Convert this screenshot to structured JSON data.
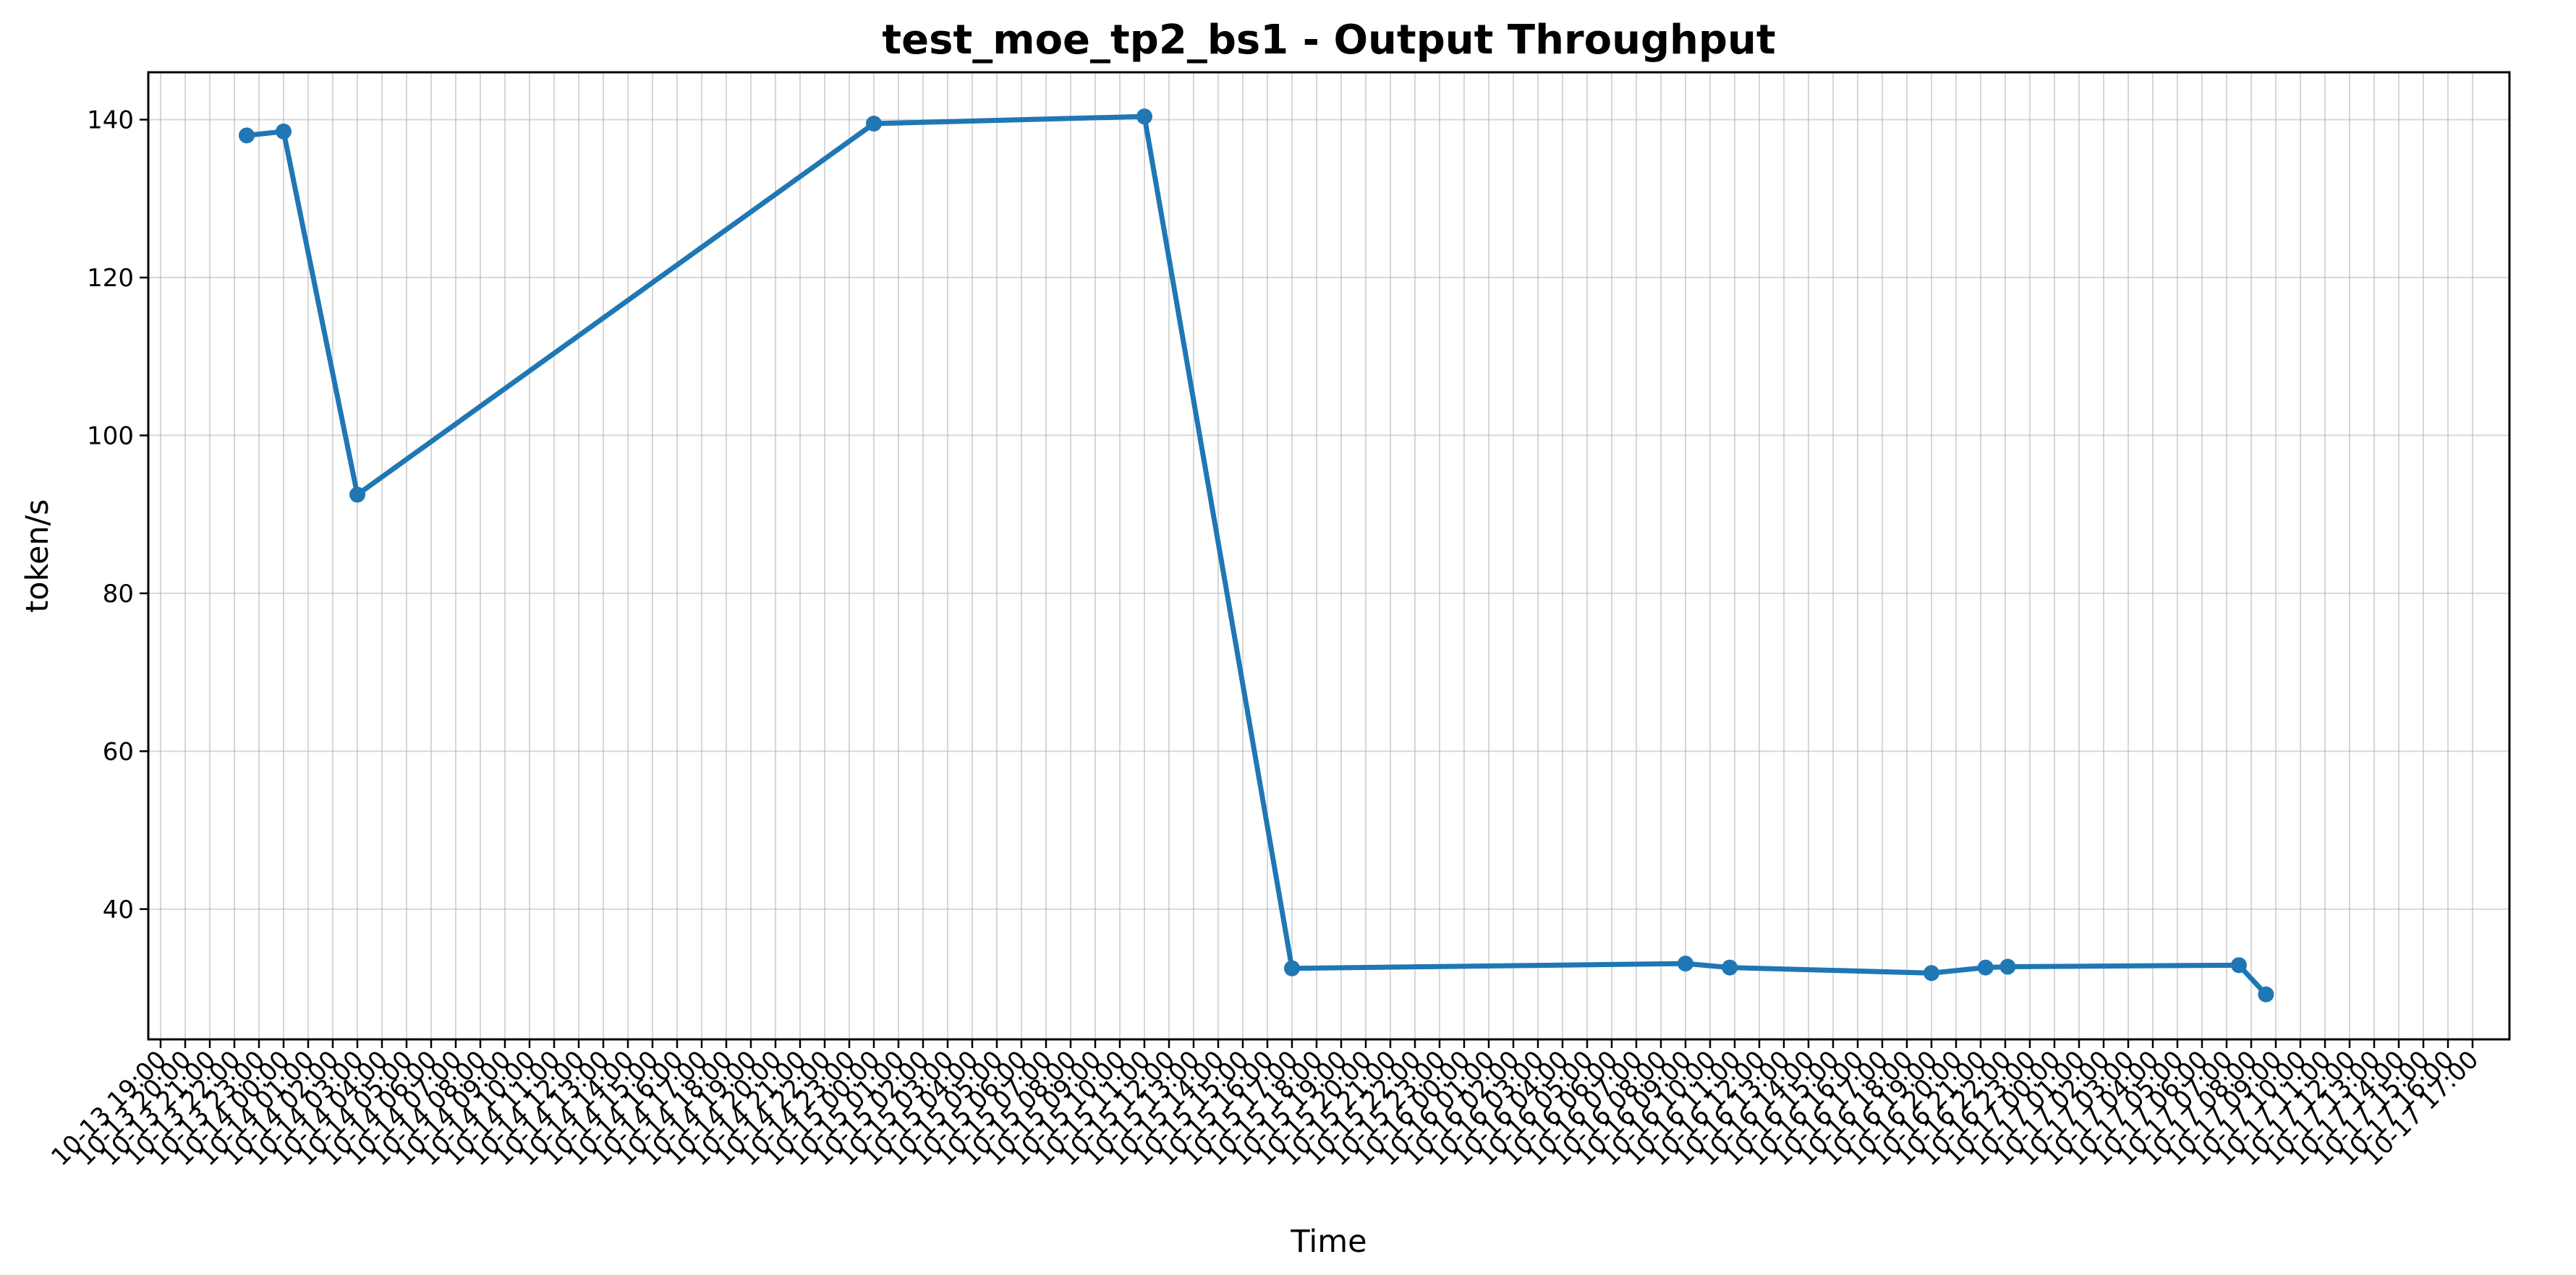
{
  "chart_data": {
    "type": "line",
    "title": "test_moe_tp2_bs1 - Output Throughput",
    "xlabel": "Time",
    "ylabel": "token/s",
    "ylim": [
      23.5,
      146
    ],
    "yticks": [
      40,
      60,
      80,
      100,
      120,
      140
    ],
    "grid": true,
    "line_color": "#1f77b4",
    "x_unit": "hours since 10-13 19:00",
    "xlim": [
      -0.5,
      95.5
    ],
    "x_tick_labels": [
      "10-13 19:00",
      "10-13 20:00",
      "10-13 21:00",
      "10-13 22:00",
      "10-13 23:00",
      "10-14 00:00",
      "10-14 01:00",
      "10-14 02:00",
      "10-14 03:00",
      "10-14 04:00",
      "10-14 05:00",
      "10-14 06:00",
      "10-14 07:00",
      "10-14 08:00",
      "10-14 09:00",
      "10-14 10:00",
      "10-14 11:00",
      "10-14 12:00",
      "10-14 13:00",
      "10-14 14:00",
      "10-14 15:00",
      "10-14 16:00",
      "10-14 17:00",
      "10-14 18:00",
      "10-14 19:00",
      "10-14 20:00",
      "10-14 21:00",
      "10-14 22:00",
      "10-14 23:00",
      "10-15 00:00",
      "10-15 01:00",
      "10-15 02:00",
      "10-15 03:00",
      "10-15 04:00",
      "10-15 05:00",
      "10-15 06:00",
      "10-15 07:00",
      "10-15 08:00",
      "10-15 09:00",
      "10-15 10:00",
      "10-15 11:00",
      "10-15 12:00",
      "10-15 13:00",
      "10-15 14:00",
      "10-15 15:00",
      "10-15 16:00",
      "10-15 17:00",
      "10-15 18:00",
      "10-15 19:00",
      "10-15 20:00",
      "10-15 21:00",
      "10-15 22:00",
      "10-15 23:00",
      "10-16 00:00",
      "10-16 01:00",
      "10-16 02:00",
      "10-16 03:00",
      "10-16 04:00",
      "10-16 05:00",
      "10-16 06:00",
      "10-16 07:00",
      "10-16 08:00",
      "10-16 09:00",
      "10-16 10:00",
      "10-16 11:00",
      "10-16 12:00",
      "10-16 13:00",
      "10-16 14:00",
      "10-16 15:00",
      "10-16 16:00",
      "10-16 17:00",
      "10-16 18:00",
      "10-16 19:00",
      "10-16 20:00",
      "10-16 21:00",
      "10-16 22:00",
      "10-16 23:00",
      "10-17 00:00",
      "10-17 01:00",
      "10-17 02:00",
      "10-17 03:00",
      "10-17 04:00",
      "10-17 05:00",
      "10-17 06:00",
      "10-17 07:00",
      "10-17 08:00",
      "10-17 09:00",
      "10-17 10:00",
      "10-17 11:00",
      "10-17 12:00",
      "10-17 13:00",
      "10-17 14:00",
      "10-17 15:00",
      "10-17 16:00",
      "10-17 17:00"
    ],
    "series": [
      {
        "name": "Output Throughput",
        "x": [
          3.5,
          5.0,
          8.0,
          29.0,
          40.0,
          46.0,
          62.0,
          63.8,
          72.0,
          74.2,
          75.1,
          84.5,
          85.6
        ],
        "values": [
          138.0,
          138.5,
          92.5,
          139.5,
          140.4,
          32.5,
          33.1,
          32.6,
          31.9,
          32.6,
          32.7,
          32.9,
          29.2
        ]
      }
    ]
  }
}
